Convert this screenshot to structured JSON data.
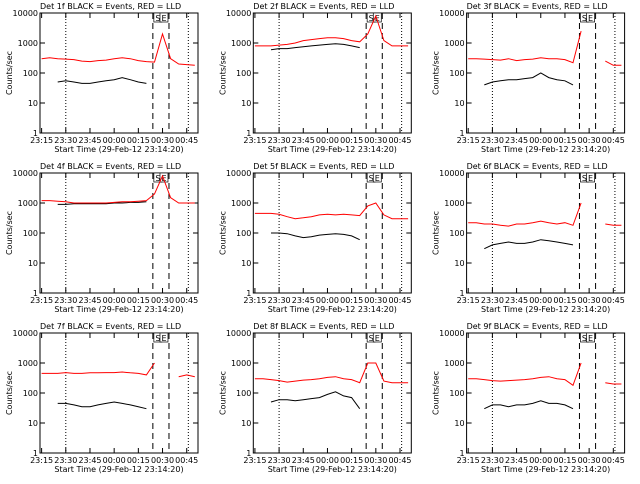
{
  "chart_data": [
    {
      "type": "line",
      "title": "Det 1f BLACK = Events, RED = LLD",
      "x_label": "Start Time (29-Feb-12 23:14:20)",
      "y_label": "Counts/sec",
      "log_y": true,
      "x": [
        "23:15",
        "23:20",
        "23:25",
        "23:30",
        "23:35",
        "23:40",
        "23:45",
        "23:50",
        "23:55",
        "00:00",
        "00:05",
        "00:10",
        "00:15",
        "00:20",
        "00:25",
        "00:30",
        "00:35",
        "00:40",
        "00:45",
        "00:50"
      ],
      "xlim": [
        "23:14",
        "00:52"
      ],
      "xticks": [
        "23:15",
        "23:30",
        "23:45",
        "00:00",
        "00:15",
        "00:30",
        "00:45"
      ],
      "ylim": [
        1,
        10000
      ],
      "yticks": [
        1,
        10,
        100,
        1000,
        10000
      ],
      "series": [
        {
          "name": "Events",
          "color": "#000000",
          "values": [
            null,
            null,
            50,
            55,
            50,
            45,
            45,
            50,
            55,
            60,
            70,
            60,
            50,
            45,
            null,
            null,
            null,
            null,
            null,
            null
          ]
        },
        {
          "name": "LLD",
          "color": "#ff0000",
          "values": [
            300,
            320,
            300,
            290,
            280,
            250,
            240,
            260,
            270,
            300,
            320,
            300,
            260,
            240,
            230,
            2000,
            300,
            200,
            190,
            180
          ]
        }
      ],
      "events": [
        {
          "label": "S",
          "x": "00:24"
        },
        {
          "label": "E",
          "x": "00:34"
        }
      ],
      "dotted_lines": [
        "23:30",
        "00:46"
      ]
    },
    {
      "type": "line",
      "title": "Det 2f BLACK = Events, RED = LLD",
      "x_label": "Start Time (29-Feb-12 23:14:20)",
      "y_label": "Counts/sec",
      "log_y": true,
      "x": [
        "23:15",
        "23:20",
        "23:25",
        "23:30",
        "23:35",
        "23:40",
        "23:45",
        "23:50",
        "23:55",
        "00:00",
        "00:05",
        "00:10",
        "00:15",
        "00:20",
        "00:25",
        "00:30",
        "00:35",
        "00:40",
        "00:45",
        "00:50"
      ],
      "xlim": [
        "23:14",
        "00:52"
      ],
      "xticks": [
        "23:15",
        "23:30",
        "23:45",
        "00:00",
        "00:15",
        "00:30",
        "00:45"
      ],
      "ylim": [
        1,
        10000
      ],
      "yticks": [
        1,
        10,
        100,
        1000,
        10000
      ],
      "series": [
        {
          "name": "Events",
          "color": "#000000",
          "values": [
            null,
            null,
            600,
            650,
            650,
            700,
            750,
            800,
            850,
            900,
            950,
            900,
            800,
            700,
            null,
            null,
            null,
            null,
            null,
            null
          ]
        },
        {
          "name": "LLD",
          "color": "#ff0000",
          "values": [
            800,
            800,
            800,
            850,
            900,
            1000,
            1200,
            1300,
            1400,
            1500,
            1500,
            1400,
            1200,
            1100,
            2000,
            8000,
            1200,
            800,
            800,
            800
          ]
        }
      ],
      "events": [
        {
          "label": "S",
          "x": "00:24"
        },
        {
          "label": "E",
          "x": "00:34"
        }
      ],
      "dotted_lines": [
        "23:30",
        "00:46"
      ]
    },
    {
      "type": "line",
      "title": "Det 3f BLACK = Events, RED = LLD",
      "x_label": "Start Time (29-Feb-12 23:14:20)",
      "y_label": "Counts/sec",
      "log_y": true,
      "x": [
        "23:15",
        "23:20",
        "23:25",
        "23:30",
        "23:35",
        "23:40",
        "23:45",
        "23:50",
        "23:55",
        "00:00",
        "00:05",
        "00:10",
        "00:15",
        "00:20",
        "00:25",
        "00:30",
        "00:35",
        "00:40",
        "00:45",
        "00:50"
      ],
      "xlim": [
        "23:14",
        "00:52"
      ],
      "xticks": [
        "23:15",
        "23:30",
        "23:45",
        "00:00",
        "00:15",
        "00:30",
        "00:45"
      ],
      "ylim": [
        1,
        10000
      ],
      "yticks": [
        1,
        10,
        100,
        1000,
        10000
      ],
      "series": [
        {
          "name": "Events",
          "color": "#000000",
          "values": [
            null,
            null,
            40,
            50,
            55,
            60,
            60,
            65,
            70,
            100,
            70,
            60,
            55,
            40,
            null,
            null,
            null,
            null,
            null,
            null
          ]
        },
        {
          "name": "LLD",
          "color": "#ff0000",
          "values": [
            300,
            300,
            290,
            280,
            270,
            300,
            260,
            280,
            290,
            320,
            300,
            300,
            280,
            220,
            2500,
            null,
            null,
            250,
            180,
            180
          ]
        }
      ],
      "events": [
        {
          "label": "S",
          "x": "00:24"
        },
        {
          "label": "E",
          "x": "00:34"
        }
      ],
      "dotted_lines": [
        "23:30",
        "00:46"
      ]
    },
    {
      "type": "line",
      "title": "Det 4f BLACK = Events, RED = LLD",
      "x_label": "Start Time (29-Feb-12 23:14:20)",
      "y_label": "Counts/sec",
      "log_y": true,
      "x": [
        "23:15",
        "23:20",
        "23:25",
        "23:30",
        "23:35",
        "23:40",
        "23:45",
        "23:50",
        "23:55",
        "00:00",
        "00:05",
        "00:10",
        "00:15",
        "00:20",
        "00:25",
        "00:30",
        "00:35",
        "00:40",
        "00:45",
        "00:50"
      ],
      "xlim": [
        "23:14",
        "00:52"
      ],
      "xticks": [
        "23:15",
        "23:30",
        "23:45",
        "00:00",
        "00:15",
        "00:30",
        "00:45"
      ],
      "ylim": [
        1,
        10000
      ],
      "yticks": [
        1,
        10,
        100,
        1000,
        10000
      ],
      "series": [
        {
          "name": "Events",
          "color": "#000000",
          "values": [
            null,
            null,
            900,
            900,
            950,
            950,
            950,
            950,
            950,
            1000,
            1000,
            1050,
            1050,
            1100,
            null,
            null,
            null,
            null,
            null,
            null
          ]
        },
        {
          "name": "LLD",
          "color": "#ff0000",
          "values": [
            1200,
            1200,
            1150,
            1100,
            1000,
            1000,
            1000,
            1000,
            1000,
            1050,
            1100,
            1100,
            1150,
            1200,
            2000,
            8000,
            1500,
            1000,
            1000,
            1000
          ]
        }
      ],
      "events": [
        {
          "label": "S",
          "x": "00:24"
        },
        {
          "label": "E",
          "x": "00:34"
        }
      ],
      "dotted_lines": [
        "23:30",
        "00:46"
      ]
    },
    {
      "type": "line",
      "title": "Det 5f BLACK = Events, RED = LLD",
      "x_label": "Start Time (29-Feb-12 23:14:20)",
      "y_label": "Counts/sec",
      "log_y": true,
      "x": [
        "23:15",
        "23:20",
        "23:25",
        "23:30",
        "23:35",
        "23:40",
        "23:45",
        "23:50",
        "23:55",
        "00:00",
        "00:05",
        "00:10",
        "00:15",
        "00:20",
        "00:25",
        "00:30",
        "00:35",
        "00:40",
        "00:45",
        "00:50"
      ],
      "xlim": [
        "23:14",
        "00:52"
      ],
      "xticks": [
        "23:15",
        "23:30",
        "23:45",
        "00:00",
        "00:15",
        "00:30",
        "00:45"
      ],
      "ylim": [
        1,
        10000
      ],
      "yticks": [
        1,
        10,
        100,
        1000,
        10000
      ],
      "series": [
        {
          "name": "Events",
          "color": "#000000",
          "values": [
            null,
            null,
            100,
            100,
            95,
            80,
            70,
            75,
            85,
            90,
            95,
            90,
            80,
            60,
            null,
            null,
            null,
            null,
            null,
            null
          ]
        },
        {
          "name": "LLD",
          "color": "#ff0000",
          "values": [
            450,
            450,
            450,
            420,
            350,
            300,
            320,
            350,
            400,
            420,
            400,
            420,
            400,
            380,
            800,
            1000,
            400,
            300,
            300,
            300
          ]
        }
      ],
      "events": [
        {
          "label": "S",
          "x": "00:24"
        },
        {
          "label": "E",
          "x": "00:34"
        }
      ],
      "dotted_lines": [
        "23:30",
        "00:46"
      ]
    },
    {
      "type": "line",
      "title": "Det 6f BLACK = Events, RED = LLD",
      "x_label": "Start Time (29-Feb-12 23:14:20)",
      "y_label": "Counts/sec",
      "log_y": true,
      "x": [
        "23:15",
        "23:20",
        "23:25",
        "23:30",
        "23:35",
        "23:40",
        "23:45",
        "23:50",
        "23:55",
        "00:00",
        "00:05",
        "00:10",
        "00:15",
        "00:20",
        "00:25",
        "00:30",
        "00:35",
        "00:40",
        "00:45",
        "00:50"
      ],
      "xlim": [
        "23:14",
        "00:52"
      ],
      "xticks": [
        "23:15",
        "23:30",
        "23:45",
        "00:00",
        "00:15",
        "00:30",
        "00:45"
      ],
      "ylim": [
        1,
        10000
      ],
      "yticks": [
        1,
        10,
        100,
        1000,
        10000
      ],
      "series": [
        {
          "name": "Events",
          "color": "#000000",
          "values": [
            null,
            null,
            30,
            40,
            45,
            50,
            45,
            45,
            50,
            60,
            55,
            50,
            45,
            40,
            null,
            null,
            null,
            null,
            null,
            null
          ]
        },
        {
          "name": "LLD",
          "color": "#ff0000",
          "values": [
            220,
            220,
            200,
            200,
            180,
            170,
            200,
            200,
            220,
            250,
            220,
            200,
            220,
            180,
            1000,
            null,
            null,
            200,
            180,
            180
          ]
        }
      ],
      "events": [
        {
          "label": "S",
          "x": "00:24"
        },
        {
          "label": "E",
          "x": "00:34"
        }
      ],
      "dotted_lines": [
        "23:30",
        "00:46"
      ]
    },
    {
      "type": "line",
      "title": "Det 7f BLACK = Events, RED = LLD",
      "x_label": "Start Time (29-Feb-12 23:14:20)",
      "y_label": "Counts/sec",
      "log_y": true,
      "x": [
        "23:15",
        "23:20",
        "23:25",
        "23:30",
        "23:35",
        "23:40",
        "23:45",
        "23:50",
        "23:55",
        "00:00",
        "00:05",
        "00:10",
        "00:15",
        "00:20",
        "00:25",
        "00:30",
        "00:35",
        "00:40",
        "00:45",
        "00:50"
      ],
      "xlim": [
        "23:14",
        "00:52"
      ],
      "xticks": [
        "23:15",
        "23:30",
        "23:45",
        "00:00",
        "00:15",
        "00:30",
        "00:45"
      ],
      "ylim": [
        1,
        10000
      ],
      "yticks": [
        1,
        10,
        100,
        1000,
        10000
      ],
      "series": [
        {
          "name": "Events",
          "color": "#000000",
          "values": [
            null,
            null,
            45,
            45,
            40,
            35,
            35,
            40,
            45,
            50,
            45,
            40,
            35,
            30,
            null,
            null,
            null,
            null,
            null,
            null
          ]
        },
        {
          "name": "LLD",
          "color": "#ff0000",
          "values": [
            450,
            450,
            450,
            480,
            450,
            450,
            470,
            470,
            480,
            480,
            500,
            470,
            450,
            400,
            1000,
            null,
            null,
            350,
            400,
            350
          ]
        }
      ],
      "events": [
        {
          "label": "S",
          "x": "00:24"
        },
        {
          "label": "E",
          "x": "00:34"
        }
      ],
      "dotted_lines": [
        "23:30",
        "00:46"
      ]
    },
    {
      "type": "line",
      "title": "Det 8f BLACK = Events, RED = LLD",
      "x_label": "Start Time (29-Feb-12 23:14:20)",
      "y_label": "Counts/sec",
      "log_y": true,
      "x": [
        "23:15",
        "23:20",
        "23:25",
        "23:30",
        "23:35",
        "23:40",
        "23:45",
        "23:50",
        "23:55",
        "00:00",
        "00:05",
        "00:10",
        "00:15",
        "00:20",
        "00:25",
        "00:30",
        "00:35",
        "00:40",
        "00:45",
        "00:50"
      ],
      "xlim": [
        "23:14",
        "00:52"
      ],
      "xticks": [
        "23:15",
        "23:30",
        "23:45",
        "00:00",
        "00:15",
        "00:30",
        "00:45"
      ],
      "ylim": [
        1,
        10000
      ],
      "yticks": [
        1,
        10,
        100,
        1000,
        10000
      ],
      "series": [
        {
          "name": "Events",
          "color": "#000000",
          "values": [
            null,
            null,
            50,
            60,
            60,
            55,
            60,
            65,
            70,
            90,
            110,
            80,
            70,
            30,
            null,
            null,
            null,
            null,
            null,
            null
          ]
        },
        {
          "name": "LLD",
          "color": "#ff0000",
          "values": [
            300,
            300,
            280,
            260,
            230,
            250,
            270,
            280,
            300,
            330,
            350,
            300,
            280,
            220,
            1000,
            1000,
            250,
            220,
            220,
            220
          ]
        }
      ],
      "events": [
        {
          "label": "S",
          "x": "00:24"
        },
        {
          "label": "E",
          "x": "00:34"
        }
      ],
      "dotted_lines": [
        "23:30",
        "00:46"
      ]
    },
    {
      "type": "line",
      "title": "Det 9f BLACK = Events, RED = LLD",
      "x_label": "Start Time (29-Feb-12 23:14:20)",
      "y_label": "Counts/sec",
      "log_y": true,
      "x": [
        "23:15",
        "23:20",
        "23:25",
        "23:30",
        "23:35",
        "23:40",
        "23:45",
        "23:50",
        "23:55",
        "00:00",
        "00:05",
        "00:10",
        "00:15",
        "00:20",
        "00:25",
        "00:30",
        "00:35",
        "00:40",
        "00:45",
        "00:50"
      ],
      "xlim": [
        "23:14",
        "00:52"
      ],
      "xticks": [
        "23:15",
        "23:30",
        "23:45",
        "00:00",
        "00:15",
        "00:30",
        "00:45"
      ],
      "ylim": [
        1,
        10000
      ],
      "yticks": [
        1,
        10,
        100,
        1000,
        10000
      ],
      "series": [
        {
          "name": "Events",
          "color": "#000000",
          "values": [
            null,
            null,
            30,
            40,
            40,
            35,
            40,
            40,
            45,
            55,
            45,
            45,
            40,
            30,
            null,
            null,
            null,
            null,
            null,
            null
          ]
        },
        {
          "name": "LLD",
          "color": "#ff0000",
          "values": [
            300,
            300,
            280,
            260,
            250,
            260,
            270,
            280,
            300,
            330,
            350,
            300,
            280,
            180,
            1000,
            null,
            null,
            220,
            200,
            200
          ]
        }
      ],
      "events": [
        {
          "label": "S",
          "x": "00:24"
        },
        {
          "label": "E",
          "x": "00:34"
        }
      ],
      "dotted_lines": [
        "23:30",
        "00:46"
      ]
    }
  ]
}
